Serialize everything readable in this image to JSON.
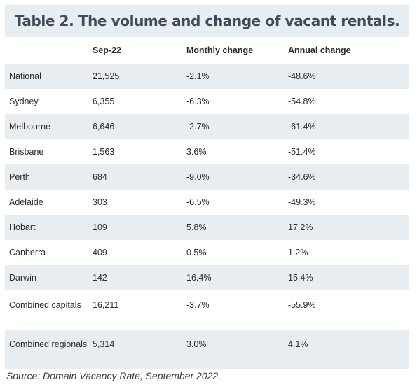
{
  "title": "Table 2. The volume and change of vacant rentals.",
  "columns": [
    "",
    "Sep-22",
    "Monthly change",
    "Annual change"
  ],
  "rows": [
    [
      "National",
      "21,525",
      "-2.1%",
      "-48.6%"
    ],
    [
      "Sydney",
      "6,355",
      "-6.3%",
      "-54.8%"
    ],
    [
      "Melbourne",
      "6,646",
      "-2.7%",
      "-61.4%"
    ],
    [
      "Brisbane",
      "1,563",
      "3.6%",
      "-51.4%"
    ],
    [
      "Perth",
      "684",
      "-9.0%",
      "-34.6%"
    ],
    [
      "Adelaide",
      "303",
      "-6.5%",
      "-49.3%"
    ],
    [
      "Hobart",
      "109",
      "5.8%",
      "17.2%"
    ],
    [
      "Canberra",
      "409",
      "0.5%",
      "1.2%"
    ],
    [
      "Darwin",
      "142",
      "16.4%",
      "15.4%"
    ],
    [
      "Combined capitals",
      "16,211",
      "-3.7%",
      "-55.9%"
    ],
    [
      "Combined regionals",
      "5,314",
      "3.0%",
      "4.1%"
    ]
  ],
  "source": "Source: Domain Vacancy Rate, September 2022."
}
